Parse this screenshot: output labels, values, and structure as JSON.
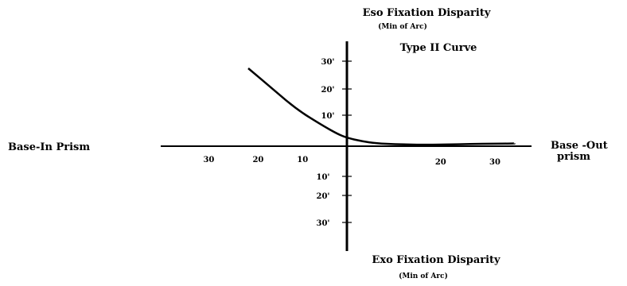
{
  "chart_data": {
    "type": "line",
    "title": "Type II Curve",
    "top_label": "Eso Fixation Disparity",
    "top_sublabel": "(Min of Arc)",
    "bottom_label": "Exo Fixation Disparity",
    "bottom_sublabel": "(Min of Arc)",
    "left_label": "Base-In Prism",
    "right_label_line1": "Base -Out",
    "right_label_line2": "prism",
    "x_ticks_left": [
      "30",
      "20",
      "10"
    ],
    "x_ticks_right": [
      "20",
      "30"
    ],
    "y_ticks_up": [
      "30'",
      "20'",
      "10'"
    ],
    "y_ticks_down": [
      "10'",
      "20'",
      "30'"
    ],
    "xlim": [
      -35,
      35
    ],
    "ylim": [
      -35,
      35
    ],
    "grid": false,
    "series": [
      {
        "x": [
          -20,
          -15,
          -10,
          -5,
          -2,
          0,
          3,
          6,
          10,
          15,
          20,
          25,
          30,
          34
        ],
        "y": [
          28,
          20.5,
          13,
          7.5,
          4.5,
          3,
          1.8,
          1,
          0.7,
          0.5,
          0.6,
          0.8,
          0.9,
          1
        ]
      }
    ]
  }
}
